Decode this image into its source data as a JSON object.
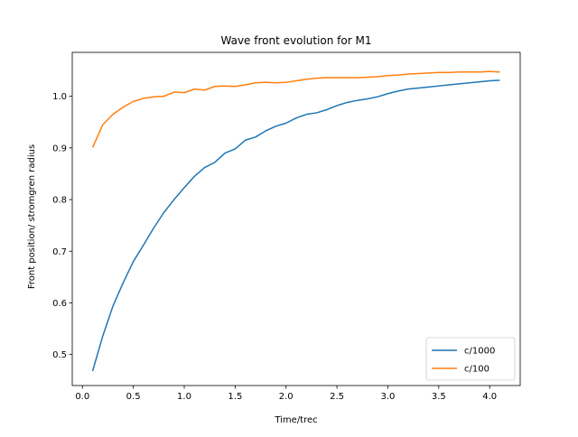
{
  "chart_data": {
    "type": "line",
    "title": "Wave front evolution for M1",
    "xlabel": "Time/trec",
    "ylabel": "Front position/ stromgren radius",
    "xlim": [
      -0.1,
      4.3
    ],
    "ylim": [
      0.44,
      1.085
    ],
    "xticks": [
      0.0,
      0.5,
      1.0,
      1.5,
      2.0,
      2.5,
      3.0,
      3.5,
      4.0
    ],
    "xtick_labels": [
      "0.0",
      "0.5",
      "1.0",
      "1.5",
      "2.0",
      "2.5",
      "3.0",
      "3.5",
      "4.0"
    ],
    "yticks": [
      0.5,
      0.6,
      0.7,
      0.8,
      0.9,
      1.0
    ],
    "ytick_labels": [
      "0.5",
      "0.6",
      "0.7",
      "0.8",
      "0.9",
      "1.0"
    ],
    "grid": false,
    "legend_position": "lower-right",
    "series": [
      {
        "name": "c/1000",
        "color": "#1f77b4",
        "x": [
          0.1,
          0.2,
          0.3,
          0.4,
          0.5,
          0.6,
          0.7,
          0.8,
          0.9,
          1.0,
          1.1,
          1.2,
          1.3,
          1.4,
          1.5,
          1.6,
          1.7,
          1.8,
          1.9,
          2.0,
          2.1,
          2.2,
          2.3,
          2.4,
          2.5,
          2.6,
          2.7,
          2.8,
          2.9,
          3.0,
          3.1,
          3.2,
          3.3,
          3.4,
          3.5,
          3.6,
          3.7,
          3.8,
          3.9,
          4.0,
          4.1
        ],
        "y": [
          0.468,
          0.536,
          0.594,
          0.639,
          0.68,
          0.712,
          0.745,
          0.775,
          0.8,
          0.823,
          0.845,
          0.862,
          0.872,
          0.89,
          0.898,
          0.915,
          0.921,
          0.933,
          0.942,
          0.948,
          0.958,
          0.965,
          0.968,
          0.974,
          0.982,
          0.988,
          0.992,
          0.995,
          0.999,
          1.005,
          1.01,
          1.014,
          1.016,
          1.018,
          1.02,
          1.022,
          1.024,
          1.026,
          1.028,
          1.03,
          1.031
        ]
      },
      {
        "name": "c/100",
        "color": "#ff7f0e",
        "x": [
          0.1,
          0.2,
          0.3,
          0.4,
          0.5,
          0.6,
          0.7,
          0.8,
          0.9,
          1.0,
          1.1,
          1.2,
          1.3,
          1.4,
          1.5,
          1.6,
          1.7,
          1.8,
          1.9,
          2.0,
          2.1,
          2.2,
          2.3,
          2.4,
          2.5,
          2.6,
          2.7,
          2.8,
          2.9,
          3.0,
          3.1,
          3.2,
          3.3,
          3.4,
          3.5,
          3.6,
          3.7,
          3.8,
          3.9,
          4.0,
          4.1
        ],
        "y": [
          0.901,
          0.945,
          0.965,
          0.979,
          0.99,
          0.996,
          0.999,
          1.0,
          1.008,
          1.007,
          1.014,
          1.012,
          1.019,
          1.02,
          1.019,
          1.022,
          1.026,
          1.027,
          1.026,
          1.027,
          1.03,
          1.033,
          1.035,
          1.036,
          1.036,
          1.036,
          1.036,
          1.037,
          1.038,
          1.04,
          1.041,
          1.043,
          1.044,
          1.045,
          1.046,
          1.046,
          1.047,
          1.047,
          1.047,
          1.048,
          1.047
        ]
      }
    ]
  }
}
